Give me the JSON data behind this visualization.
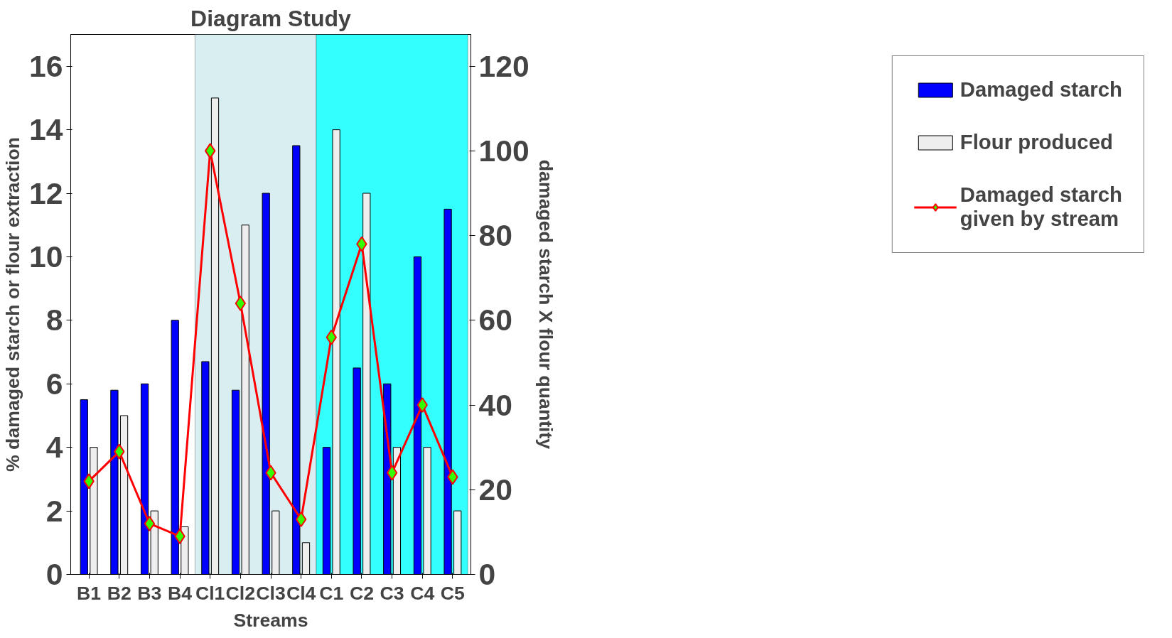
{
  "chart_data": {
    "type": "bar",
    "title": "Diagram Study",
    "xlabel": "Streams",
    "ylabel": "% damaged starch or flour extraction",
    "y2label": "damaged starch X flour quantity",
    "categories": [
      "B1",
      "B2",
      "B3",
      "B4",
      "Cl1",
      "Cl2",
      "Cl3",
      "Cl4",
      "C1",
      "C2",
      "C3",
      "C4",
      "C5"
    ],
    "series": [
      {
        "name": "Damaged starch",
        "color": "#0000ff",
        "values": [
          5.5,
          5.8,
          6,
          8,
          6.7,
          5.8,
          12,
          13.5,
          4,
          6.5,
          6,
          10,
          11.5
        ]
      },
      {
        "name": "Flour produced",
        "color": "#eeeeee",
        "values": [
          4,
          5,
          2,
          1.5,
          15,
          11,
          2,
          1,
          14,
          12,
          4,
          4,
          2
        ]
      },
      {
        "name": "Damaged starch given by stream",
        "type": "line",
        "axis": "y2",
        "color": "#ff0000",
        "marker": "diamond",
        "values": [
          22,
          29,
          12,
          9,
          100,
          64,
          24,
          13,
          56,
          78,
          24,
          40,
          23
        ]
      }
    ],
    "ylim": [
      0,
      17
    ],
    "yticks": [
      0,
      2,
      4,
      6,
      8,
      10,
      12,
      14,
      16
    ],
    "y2lim": [
      0,
      127.5
    ],
    "y2ticks": [
      0,
      20,
      40,
      60,
      80,
      100,
      120
    ],
    "bands": [
      {
        "axis": "x",
        "from": "Cl1",
        "to": "Cl4",
        "color": "#d9eef0"
      },
      {
        "axis": "x",
        "from": "C1",
        "to": "C5",
        "color": "#33ffff"
      }
    ],
    "legend": "right"
  }
}
